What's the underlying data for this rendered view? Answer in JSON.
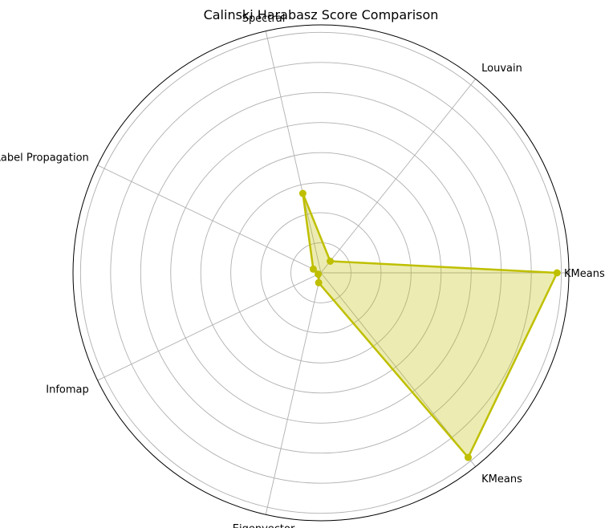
{
  "chart_data": {
    "type": "radar",
    "title": "Calinski Harabasz Score Comparison",
    "categories": [
      "KMeans",
      "Louvain",
      "Spectral",
      "Label Propagation",
      "Infomap",
      "Eigenvector",
      "KMeans"
    ],
    "series": [
      {
        "values": [
          100,
          6.3,
          34.5,
          3.6,
          1.3,
          4.3,
          100
        ],
        "color": "#bfbf00"
      }
    ],
    "rmax": 105,
    "ring_count": 8,
    "grid": true,
    "polar": true
  }
}
